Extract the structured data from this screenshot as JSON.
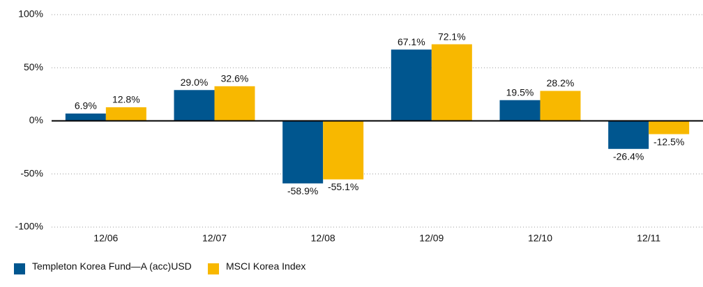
{
  "chart_data": {
    "type": "bar",
    "categories": [
      "12/06",
      "12/07",
      "12/08",
      "12/09",
      "12/10",
      "12/11"
    ],
    "series": [
      {
        "name": "Templeton Korea Fund—A (acc)USD",
        "color": "#00568f",
        "values": [
          6.9,
          29.0,
          -58.9,
          67.1,
          19.5,
          -26.4
        ],
        "value_labels": [
          "6.9%",
          "29.0%",
          "-58.9%",
          "67.1%",
          "19.5%",
          "-26.4%"
        ]
      },
      {
        "name": "MSCI Korea Index",
        "color": "#f8b800",
        "values": [
          12.8,
          32.6,
          -55.1,
          72.1,
          28.2,
          -12.5
        ],
        "value_labels": [
          "12.8%",
          "32.6%",
          "-55.1%",
          "72.1%",
          "28.2%",
          "-12.5%"
        ]
      }
    ],
    "ylim": [
      -100,
      100
    ],
    "yticks": [
      {
        "value": -100,
        "label": "-100%"
      },
      {
        "value": -50,
        "label": "-50%"
      },
      {
        "value": 0,
        "label": "0%"
      },
      {
        "value": 50,
        "label": "50%"
      },
      {
        "value": 100,
        "label": "100%"
      }
    ],
    "grid": true
  }
}
